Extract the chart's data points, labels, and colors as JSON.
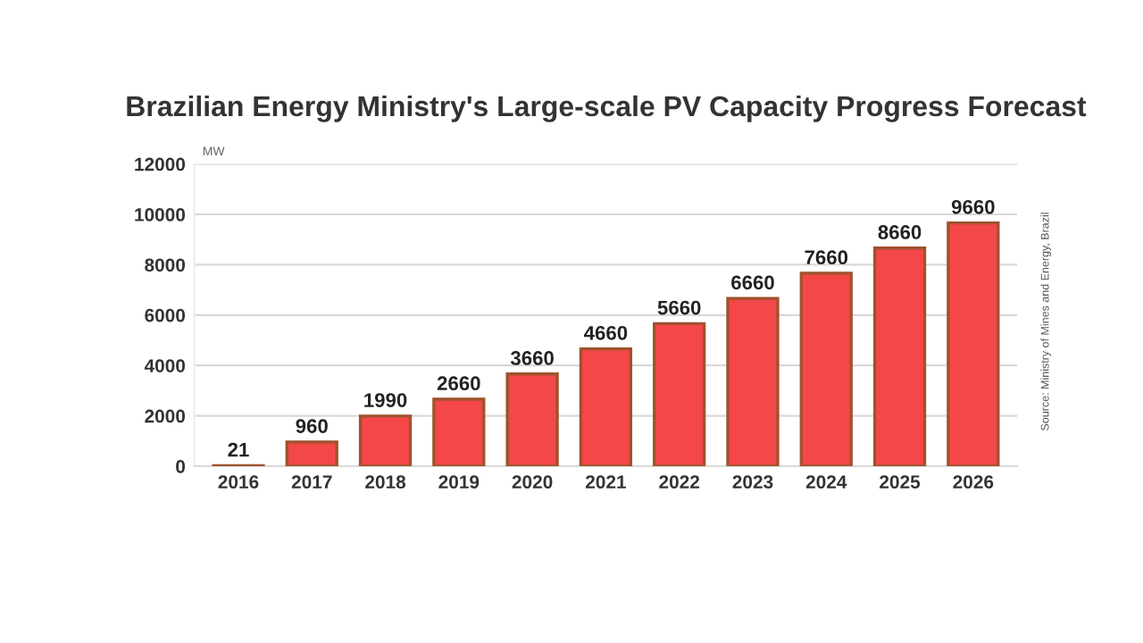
{
  "chart_data": {
    "type": "bar",
    "title": "Brazilian Energy Ministry's Large-scale PV Capacity Progress Forecast",
    "ylabel": "MW",
    "categories": [
      "2016",
      "2017",
      "2018",
      "2019",
      "2020",
      "2021",
      "2022",
      "2023",
      "2024",
      "2025",
      "2026"
    ],
    "values": [
      21,
      960,
      1990,
      2660,
      3660,
      4660,
      5660,
      6660,
      7660,
      8660,
      9660
    ],
    "color": "#f44848",
    "ylim": [
      0,
      12000
    ],
    "yticks": [
      0,
      2000,
      4000,
      6000,
      8000,
      10000,
      12000
    ],
    "grid": "y",
    "data_labels": true,
    "annotations": [
      "Source: Ministry of Mines and Energy, Brazil"
    ]
  }
}
